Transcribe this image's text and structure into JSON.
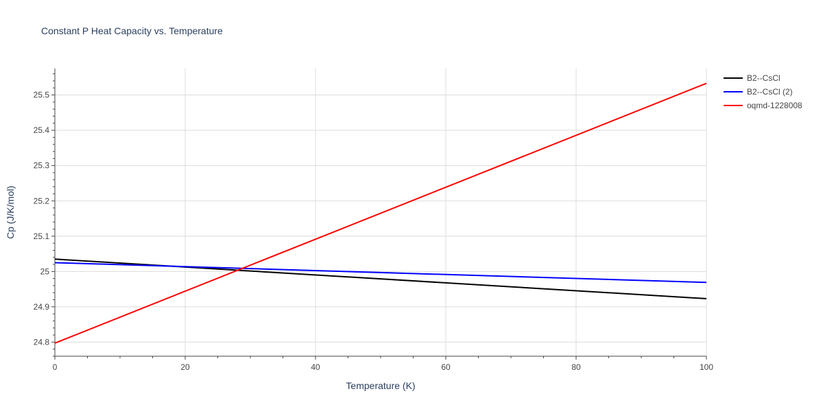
{
  "chart_data": {
    "type": "line",
    "title": "Constant P Heat Capacity vs. Temperature",
    "xlabel": "Temperature (K)",
    "ylabel": "Cp (J/K/mol)",
    "xlim": [
      0,
      100
    ],
    "ylim": [
      24.76,
      25.575
    ],
    "x_ticks": [
      0,
      20,
      40,
      60,
      80,
      100
    ],
    "y_ticks": [
      24.8,
      24.9,
      25,
      25.1,
      25.2,
      25.3,
      25.4,
      25.5
    ],
    "x_tick_labels": [
      "0",
      "20",
      "40",
      "60",
      "80",
      "100"
    ],
    "y_tick_labels": [
      "24.8",
      "24.9",
      "25",
      "25.1",
      "25.2",
      "25.3",
      "25.4",
      "25.5"
    ],
    "grid": true,
    "legend_position": "top-right",
    "series": [
      {
        "name": "B2--CsCl",
        "color": "#000000",
        "x": [
          0,
          100
        ],
        "y": [
          25.035,
          24.923
        ]
      },
      {
        "name": "B2--CsCl (2)",
        "color": "#0000ff",
        "x": [
          0,
          100
        ],
        "y": [
          25.025,
          24.969
        ]
      },
      {
        "name": "oqmd-1228008",
        "color": "#ff0000",
        "x": [
          0,
          100
        ],
        "y": [
          24.797,
          25.533
        ]
      }
    ]
  }
}
